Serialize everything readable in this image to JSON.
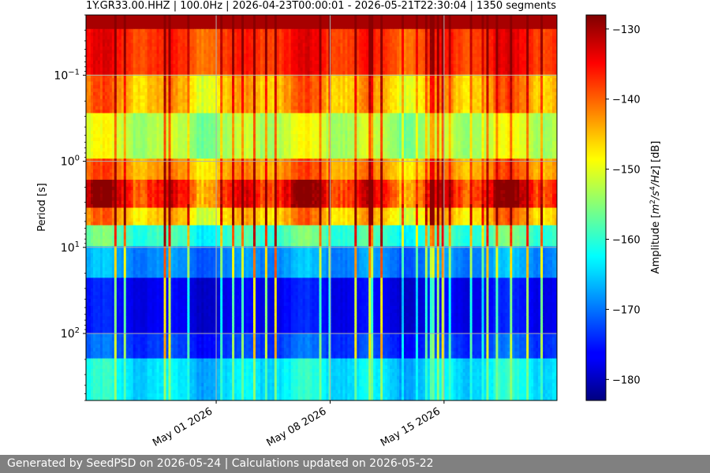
{
  "chart_data": {
    "type": "heatmap",
    "title": "1Y.GR33.00.HHZ | 100.0Hz | 2026-04-23T00:00:01 - 2026-05-21T22:30:04 | 1350 segments",
    "ylabel": "Period [s]",
    "xlabel": "",
    "x_range": [
      "2026-04-23T00:00:01",
      "2026-05-21T22:30:04"
    ],
    "x_ticks": [
      {
        "date": "2026-05-01",
        "label": "May 01 2026"
      },
      {
        "date": "2026-05-08",
        "label": "May 08 2026"
      },
      {
        "date": "2026-05-15",
        "label": "May 15 2026"
      }
    ],
    "y_scale": "log",
    "y_inverted": true,
    "y_range_period_s": [
      0.02,
      600
    ],
    "y_ticks": [
      {
        "period": 0.1,
        "base": "10",
        "exp": "−1"
      },
      {
        "period": 1,
        "base": "10",
        "exp": "0"
      },
      {
        "period": 10,
        "base": "10",
        "exp": "1"
      },
      {
        "period": 100,
        "base": "10",
        "exp": "2"
      }
    ],
    "grid": true,
    "colormap": "jet",
    "colorbar": {
      "label": "Amplitude [m²/s⁴/Hz] [dB]",
      "label_main": "Amplitude [",
      "label_units": "m",
      "label_after_units": "/",
      "label_s": "s",
      "label_hz": "/Hz",
      "label_end": "] [dB]",
      "vmin": -183,
      "vmax": -128,
      "ticks": [
        {
          "value": -130,
          "label": "−130"
        },
        {
          "value": -140,
          "label": "−140"
        },
        {
          "value": -150,
          "label": "−150"
        },
        {
          "value": -160,
          "label": "−160"
        },
        {
          "value": -170,
          "label": "−170"
        },
        {
          "value": -180,
          "label": "−180"
        }
      ]
    },
    "segments": 1350
  },
  "footer": {
    "text": "Generated by SeedPSD on 2026-05-24 | Calculations updated on 2026-05-22"
  }
}
